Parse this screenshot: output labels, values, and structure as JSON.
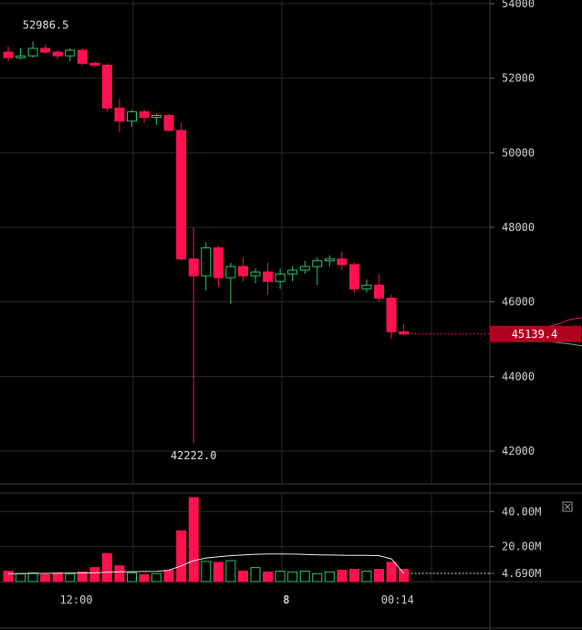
{
  "chart_data": {
    "type": "candlestick",
    "price_axis": {
      "ticks": [
        "54000",
        "52000",
        "50000",
        "48000",
        "46000",
        "44000",
        "42000"
      ],
      "tick_values": [
        54000,
        52000,
        50000,
        48000,
        46000,
        44000,
        42000
      ],
      "range": [
        40800,
        54000
      ]
    },
    "volume_axis": {
      "ticks": [
        "40.00M",
        "20.00M",
        "4.690M"
      ],
      "tick_values": [
        40000000,
        20000000,
        4690000
      ],
      "range": [
        0,
        48000000
      ]
    },
    "time_axis": {
      "labels": [
        {
          "text": "12:00",
          "bar": 5.5
        },
        {
          "text": "8",
          "bar": 22.5
        },
        {
          "text": "00:14",
          "bar": 31.5
        }
      ]
    },
    "last_price": "45139.4",
    "last_price_value": 45139.4,
    "annotations": {
      "high": "52986.5",
      "high_value": 52986.5,
      "high_bar": 2,
      "low": "42222.0",
      "low_value": 42222.0,
      "low_bar": 15
    },
    "candles": [
      {
        "o": 52700,
        "h": 52850,
        "l": 52450,
        "c": 52550
      },
      {
        "o": 52550,
        "h": 52800,
        "l": 52500,
        "c": 52600
      },
      {
        "o": 52600,
        "h": 52986.5,
        "l": 52550,
        "c": 52800
      },
      {
        "o": 52800,
        "h": 52900,
        "l": 52650,
        "c": 52700
      },
      {
        "o": 52700,
        "h": 52750,
        "l": 52500,
        "c": 52600
      },
      {
        "o": 52600,
        "h": 52800,
        "l": 52450,
        "c": 52750
      },
      {
        "o": 52750,
        "h": 52800,
        "l": 52350,
        "c": 52400
      },
      {
        "o": 52400,
        "h": 52450,
        "l": 52300,
        "c": 52350
      },
      {
        "o": 52350,
        "h": 52400,
        "l": 51100,
        "c": 51200
      },
      {
        "o": 51200,
        "h": 51450,
        "l": 50550,
        "c": 50850
      },
      {
        "o": 50850,
        "h": 51150,
        "l": 50700,
        "c": 51100
      },
      {
        "o": 51100,
        "h": 51150,
        "l": 50800,
        "c": 50950
      },
      {
        "o": 50950,
        "h": 51050,
        "l": 50750,
        "c": 51000
      },
      {
        "o": 51000,
        "h": 51050,
        "l": 50600,
        "c": 50600
      },
      {
        "o": 50600,
        "h": 50800,
        "l": 47100,
        "c": 47150
      },
      {
        "o": 47150,
        "h": 48000,
        "l": 42222.0,
        "c": 46700
      },
      {
        "o": 46700,
        "h": 47600,
        "l": 46300,
        "c": 47450
      },
      {
        "o": 47450,
        "h": 47500,
        "l": 46400,
        "c": 46650
      },
      {
        "o": 46650,
        "h": 47050,
        "l": 45950,
        "c": 46950
      },
      {
        "o": 46950,
        "h": 47200,
        "l": 46550,
        "c": 46700
      },
      {
        "o": 46700,
        "h": 46900,
        "l": 46500,
        "c": 46800
      },
      {
        "o": 46800,
        "h": 47050,
        "l": 46200,
        "c": 46550
      },
      {
        "o": 46550,
        "h": 46900,
        "l": 46350,
        "c": 46750
      },
      {
        "o": 46750,
        "h": 46950,
        "l": 46550,
        "c": 46850
      },
      {
        "o": 46850,
        "h": 47100,
        "l": 46750,
        "c": 46950
      },
      {
        "o": 46950,
        "h": 47200,
        "l": 46450,
        "c": 47100
      },
      {
        "o": 47100,
        "h": 47250,
        "l": 46950,
        "c": 47150
      },
      {
        "o": 47150,
        "h": 47350,
        "l": 46850,
        "c": 47000
      },
      {
        "o": 47000,
        "h": 47050,
        "l": 46250,
        "c": 46350
      },
      {
        "o": 46350,
        "h": 46600,
        "l": 46250,
        "c": 46450
      },
      {
        "o": 46450,
        "h": 46750,
        "l": 46000,
        "c": 46100
      },
      {
        "o": 46100,
        "h": 46200,
        "l": 45000,
        "c": 45200
      },
      {
        "o": 45200,
        "h": 45400,
        "l": 45100,
        "c": 45139.4
      }
    ],
    "volumes": [
      6.0,
      4.5,
      5.0,
      4.0,
      5.0,
      4.5,
      5.5,
      8.0,
      16.0,
      9.0,
      5.0,
      4.0,
      4.5,
      6.5,
      29.0,
      48.0,
      11.5,
      11.0,
      12.0,
      6.0,
      8.0,
      5.5,
      6.0,
      5.5,
      6.0,
      4.5,
      5.5,
      6.5,
      7.0,
      6.0,
      7.0,
      11.0,
      7.0
    ],
    "volume_unit": "M",
    "volume_ma": [
      4.5,
      4.6,
      4.7,
      4.7,
      4.8,
      4.8,
      4.9,
      5.0,
      5.3,
      5.6,
      5.7,
      5.8,
      5.9,
      6.5,
      9.0,
      12.0,
      13.5,
      14.2,
      14.8,
      15.2,
      15.6,
      15.8,
      15.8,
      15.7,
      15.5,
      15.3,
      15.2,
      15.1,
      15.0,
      15.0,
      14.8,
      13.0,
      4.69
    ],
    "colors": {
      "up": "#26c86b",
      "down": "#ff1150",
      "grid": "#2a2a2a",
      "ma": "#e8e8e8",
      "tag": "#b0001f"
    }
  }
}
